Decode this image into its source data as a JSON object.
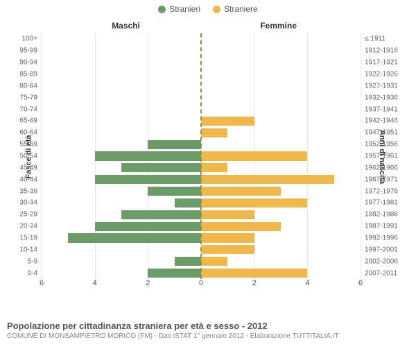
{
  "legend": {
    "male": {
      "label": "Stranieri",
      "color": "#6b9c68"
    },
    "female": {
      "label": "Straniere",
      "color": "#f0b74a"
    }
  },
  "columns": {
    "left": "Maschi",
    "right": "Femmine"
  },
  "axis_titles": {
    "left": "Fasce di età",
    "right": "Anni di nascita"
  },
  "y_left": [
    "100+",
    "95-99",
    "90-94",
    "85-89",
    "80-84",
    "75-79",
    "70-74",
    "65-69",
    "60-64",
    "55-59",
    "50-54",
    "45-49",
    "40-44",
    "35-39",
    "30-34",
    "25-29",
    "20-24",
    "15-19",
    "10-14",
    "5-9",
    "0-4"
  ],
  "y_right": [
    "≤ 1911",
    "1912-1916",
    "1917-1921",
    "1922-1926",
    "1927-1931",
    "1932-1936",
    "1937-1941",
    "1942-1946",
    "1947-1951",
    "1952-1956",
    "1957-1961",
    "1962-1966",
    "1967-1971",
    "1972-1976",
    "1977-1981",
    "1982-1986",
    "1987-1991",
    "1992-1996",
    "1997-2001",
    "2002-2006",
    "2007-2011"
  ],
  "data_male": [
    0,
    0,
    0,
    0,
    0,
    0,
    0,
    0,
    0,
    2,
    4,
    3,
    4,
    2,
    1,
    3,
    4,
    5,
    0,
    1,
    2
  ],
  "data_female": [
    0,
    0,
    0,
    0,
    0,
    0,
    0,
    2,
    1,
    0,
    4,
    1,
    5,
    3,
    4,
    2,
    3,
    2,
    2,
    1,
    4
  ],
  "x_ticks": [
    6,
    4,
    2,
    0,
    2,
    4,
    6
  ],
  "x_max": 6,
  "chart": {
    "grid_color": "#e8e8e8",
    "center_color": "#9a8f3a",
    "bg": "#ffffff",
    "label_fontsize": 10,
    "tick_fontsize": 11
  },
  "caption": {
    "title": "Popolazione per cittadinanza straniera per età e sesso - 2012",
    "subtitle": "COMUNE DI MONSAMPIETRO MORICO (FM) - Dati ISTAT 1° gennaio 2012 - Elaborazione TUTTITALIA.IT"
  }
}
